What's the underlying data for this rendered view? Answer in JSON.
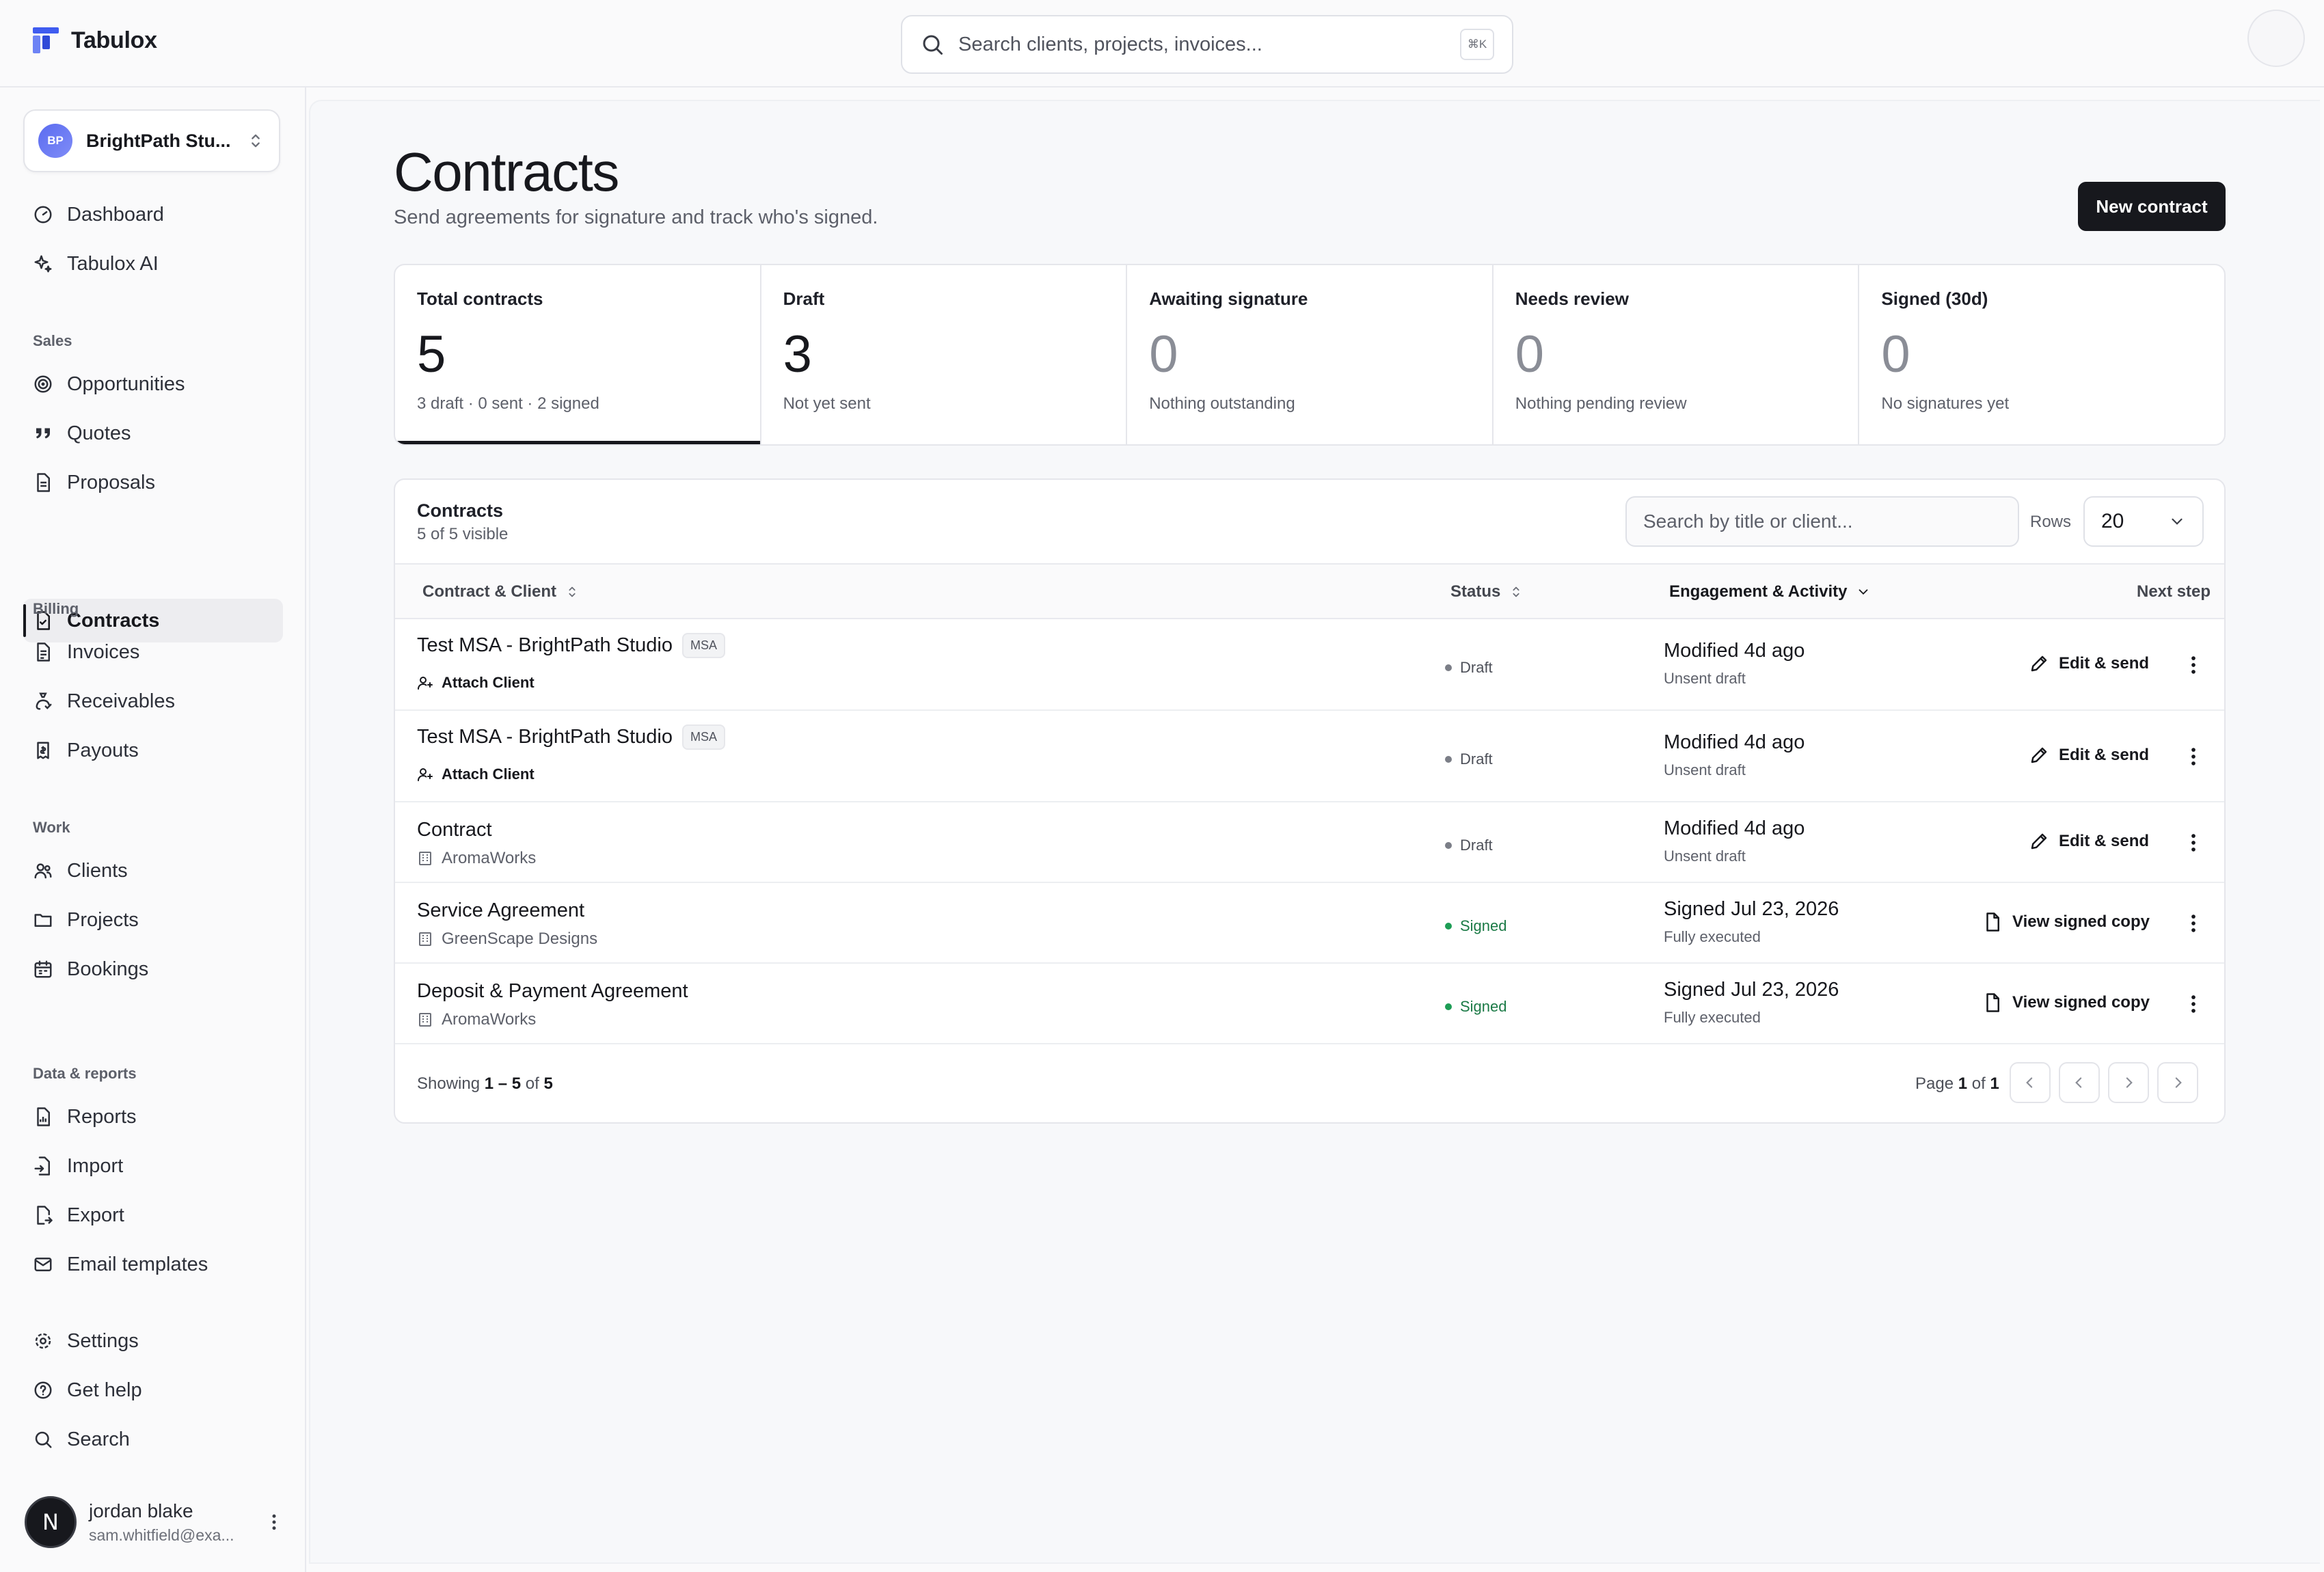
{
  "app": {
    "name": "Tabulox"
  },
  "global_search": {
    "placeholder": "Search clients, projects, invoices...",
    "shortcut": "⌘K"
  },
  "workspace": {
    "initials": "BP",
    "name": "BrightPath Stu..."
  },
  "sidebar": {
    "top": [
      {
        "label": "Dashboard",
        "icon": "dashboard-icon"
      },
      {
        "label": "Tabulox AI",
        "icon": "sparkles-icon"
      }
    ],
    "sections": [
      {
        "title": "Sales",
        "items": [
          {
            "label": "Opportunities",
            "icon": "target-icon"
          },
          {
            "label": "Quotes",
            "icon": "quote-icon"
          },
          {
            "label": "Proposals",
            "icon": "document-icon"
          },
          {
            "label": "Contracts",
            "icon": "contract-icon",
            "active": true
          }
        ]
      },
      {
        "title": "Billing",
        "items": [
          {
            "label": "Invoices",
            "icon": "invoice-icon"
          },
          {
            "label": "Receivables",
            "icon": "receivables-icon"
          },
          {
            "label": "Payouts",
            "icon": "payouts-icon"
          }
        ]
      },
      {
        "title": "Work",
        "items": [
          {
            "label": "Clients",
            "icon": "users-icon"
          },
          {
            "label": "Projects",
            "icon": "folder-icon"
          },
          {
            "label": "Bookings",
            "icon": "calendar-icon"
          }
        ]
      },
      {
        "title": "Data & reports",
        "items": [
          {
            "label": "Reports",
            "icon": "reports-icon"
          },
          {
            "label": "Import",
            "icon": "import-icon"
          },
          {
            "label": "Export",
            "icon": "export-icon"
          },
          {
            "label": "Email templates",
            "icon": "mail-icon"
          }
        ]
      }
    ],
    "bottom": [
      {
        "label": "Settings",
        "icon": "gear-icon"
      },
      {
        "label": "Get help",
        "icon": "help-icon"
      },
      {
        "label": "Search",
        "icon": "search-icon"
      }
    ],
    "user": {
      "initial": "N",
      "name": "jordan blake",
      "email": "sam.whitfield@exa..."
    }
  },
  "page": {
    "title": "Contracts",
    "subtitle": "Send agreements for signature and track who's signed.",
    "new_button": "New contract"
  },
  "stats": [
    {
      "label": "Total contracts",
      "value": "5",
      "note": "3 draft · 0 sent · 2 signed",
      "active": true
    },
    {
      "label": "Draft",
      "value": "3",
      "note": "Not yet sent"
    },
    {
      "label": "Awaiting signature",
      "value": "0",
      "note": "Nothing outstanding"
    },
    {
      "label": "Needs review",
      "value": "0",
      "note": "Nothing pending review"
    },
    {
      "label": "Signed (30d)",
      "value": "0",
      "note": "No signatures yet"
    }
  ],
  "table": {
    "title": "Contracts",
    "count": "5 of 5 visible",
    "search_placeholder": "Search by title or client...",
    "rows_label": "Rows",
    "rows_value": "20",
    "headers": {
      "contract": "Contract & Client",
      "status": "Status",
      "activity": "Engagement & Activity",
      "next": "Next step"
    },
    "rows": [
      {
        "title": "Test MSA - BrightPath Studio",
        "tag": "MSA",
        "sub": "Attach Client",
        "sub_type": "attach",
        "status": "Draft",
        "status_type": "draft",
        "activity": "Modified 4d ago",
        "activity_sub": "Unsent draft",
        "action": "Edit & send",
        "action_type": "edit"
      },
      {
        "title": "Test MSA - BrightPath Studio",
        "tag": "MSA",
        "sub": "Attach Client",
        "sub_type": "attach",
        "status": "Draft",
        "status_type": "draft",
        "activity": "Modified 4d ago",
        "activity_sub": "Unsent draft",
        "action": "Edit & send",
        "action_type": "edit"
      },
      {
        "title": "Contract",
        "tag": "",
        "sub": "AromaWorks",
        "sub_type": "client",
        "status": "Draft",
        "status_type": "draft",
        "activity": "Modified 4d ago",
        "activity_sub": "Unsent draft",
        "action": "Edit & send",
        "action_type": "edit"
      },
      {
        "title": "Service Agreement",
        "tag": "",
        "sub": "GreenScape Designs",
        "sub_type": "client",
        "status": "Signed",
        "status_type": "signed",
        "activity": "Signed Jul 23, 2026",
        "activity_sub": "Fully executed",
        "action": "View signed copy",
        "action_type": "view"
      },
      {
        "title": "Deposit & Payment Agreement",
        "tag": "",
        "sub": "AromaWorks",
        "sub_type": "client",
        "status": "Signed",
        "status_type": "signed",
        "activity": "Signed Jul 23, 2026",
        "activity_sub": "Fully executed",
        "action": "View signed copy",
        "action_type": "view"
      }
    ],
    "footer": {
      "showing_prefix": "Showing",
      "range": "1 – 5",
      "of_word": "of",
      "total": "5",
      "page_prefix": "Page",
      "page": "1",
      "page_total": "1"
    }
  }
}
